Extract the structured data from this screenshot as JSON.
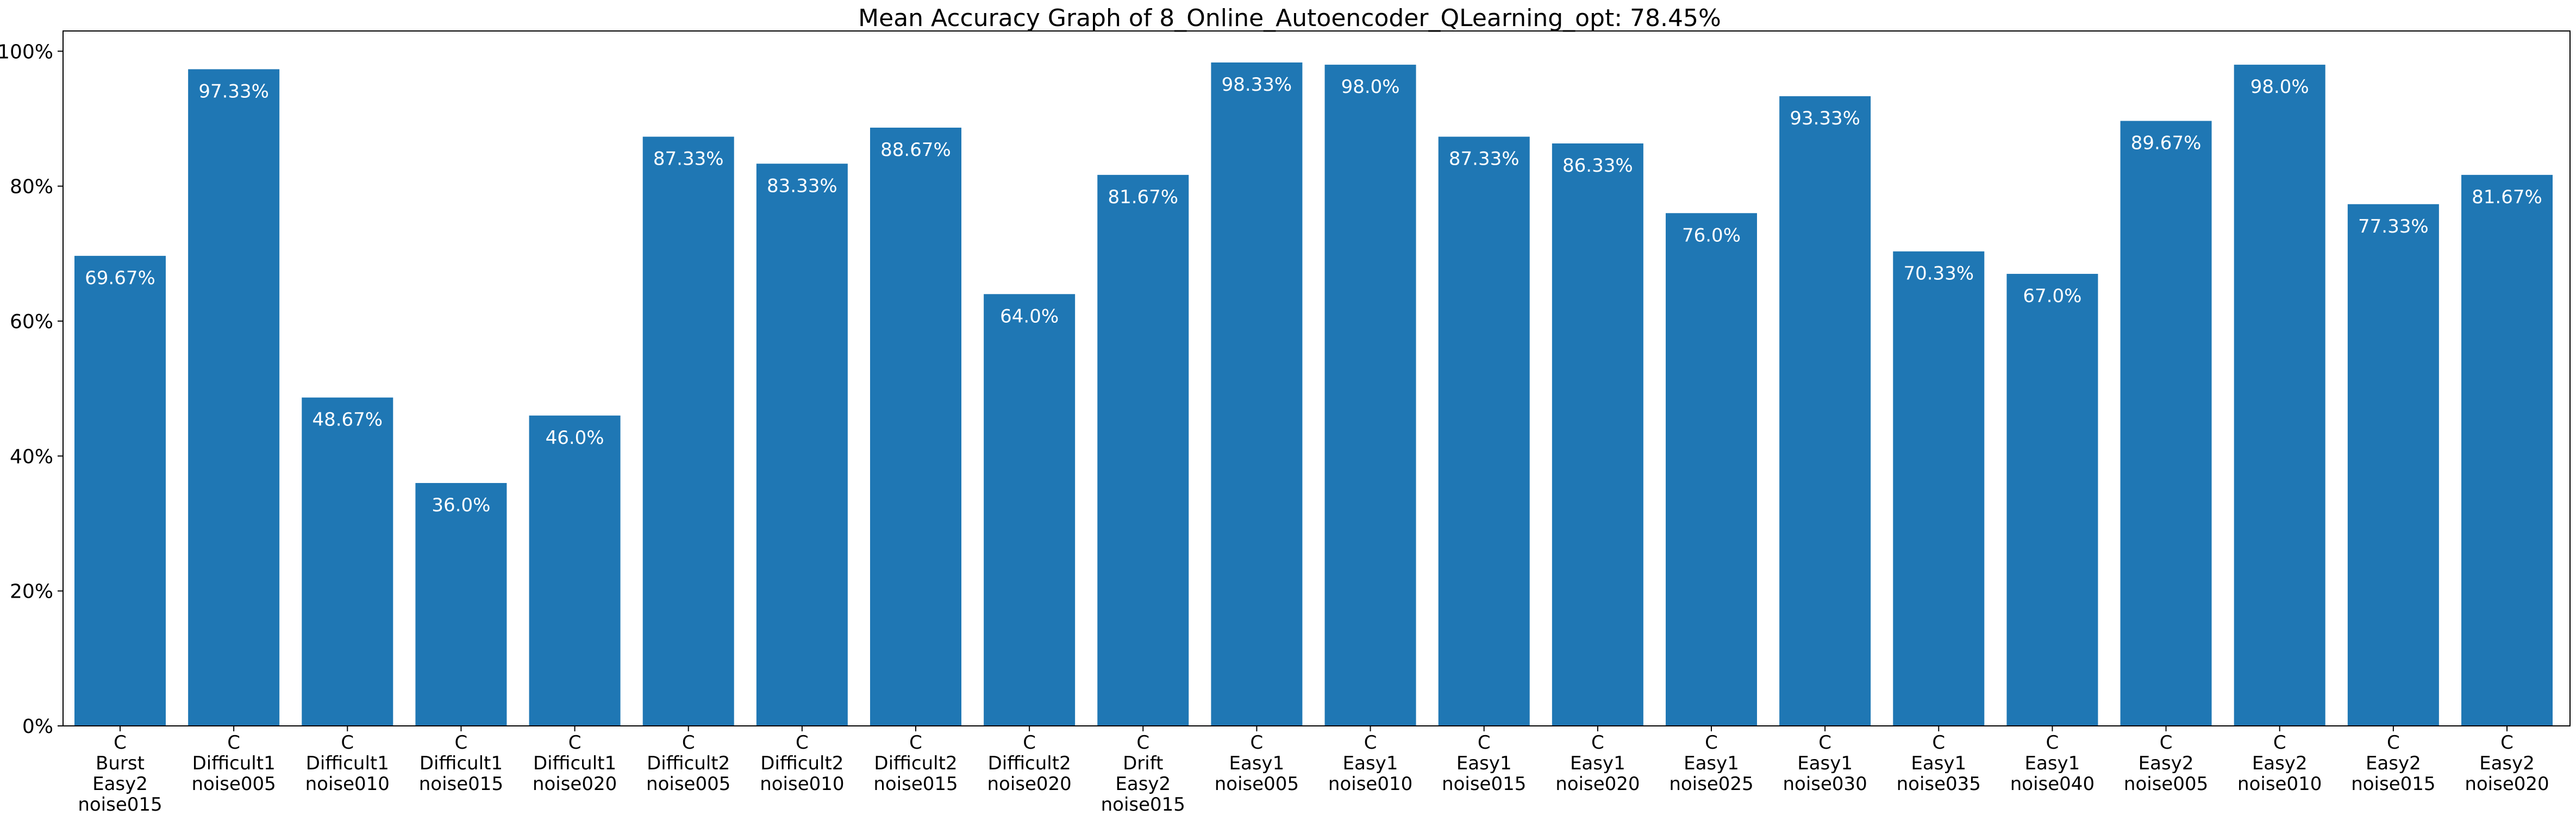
{
  "chart_data": {
    "type": "bar",
    "title": "Mean Accuracy Graph of 8_Online_Autoencoder_QLearning_opt: 78.45%",
    "xlabel": "",
    "ylabel": "",
    "ylim": [
      0,
      103
    ],
    "yticks": [
      {
        "value": 0,
        "label": "0%"
      },
      {
        "value": 20,
        "label": "20%"
      },
      {
        "value": 40,
        "label": "40%"
      },
      {
        "value": 60,
        "label": "60%"
      },
      {
        "value": 80,
        "label": "80%"
      },
      {
        "value": 100,
        "label": "100%"
      }
    ],
    "grid": false,
    "bar_color": "#1f77b4",
    "label_color": "#ffffff",
    "categories": [
      [
        "C",
        "Burst",
        "Easy2",
        "noise015"
      ],
      [
        "C",
        "Difficult1",
        "noise005"
      ],
      [
        "C",
        "Difficult1",
        "noise010"
      ],
      [
        "C",
        "Difficult1",
        "noise015"
      ],
      [
        "C",
        "Difficult1",
        "noise020"
      ],
      [
        "C",
        "Difficult2",
        "noise005"
      ],
      [
        "C",
        "Difficult2",
        "noise010"
      ],
      [
        "C",
        "Difficult2",
        "noise015"
      ],
      [
        "C",
        "Difficult2",
        "noise020"
      ],
      [
        "C",
        "Drift",
        "Easy2",
        "noise015"
      ],
      [
        "C",
        "Easy1",
        "noise005"
      ],
      [
        "C",
        "Easy1",
        "noise010"
      ],
      [
        "C",
        "Easy1",
        "noise015"
      ],
      [
        "C",
        "Easy1",
        "noise020"
      ],
      [
        "C",
        "Easy1",
        "noise025"
      ],
      [
        "C",
        "Easy1",
        "noise030"
      ],
      [
        "C",
        "Easy1",
        "noise035"
      ],
      [
        "C",
        "Easy1",
        "noise040"
      ],
      [
        "C",
        "Easy2",
        "noise005"
      ],
      [
        "C",
        "Easy2",
        "noise010"
      ],
      [
        "C",
        "Easy2",
        "noise015"
      ],
      [
        "C",
        "Easy2",
        "noise020"
      ]
    ],
    "values": [
      69.67,
      97.33,
      48.67,
      36.0,
      46.0,
      87.33,
      83.33,
      88.67,
      64.0,
      81.67,
      98.33,
      98.0,
      87.33,
      86.33,
      76.0,
      93.33,
      70.33,
      67.0,
      89.67,
      98.0,
      77.33,
      81.67
    ],
    "value_labels": [
      "69.67%",
      "97.33%",
      "48.67%",
      "36.0%",
      "46.0%",
      "87.33%",
      "83.33%",
      "88.67%",
      "64.0%",
      "81.67%",
      "98.33%",
      "98.0%",
      "87.33%",
      "86.33%",
      "76.0%",
      "93.33%",
      "70.33%",
      "67.0%",
      "89.67%",
      "98.0%",
      "77.33%",
      "81.67%"
    ]
  }
}
